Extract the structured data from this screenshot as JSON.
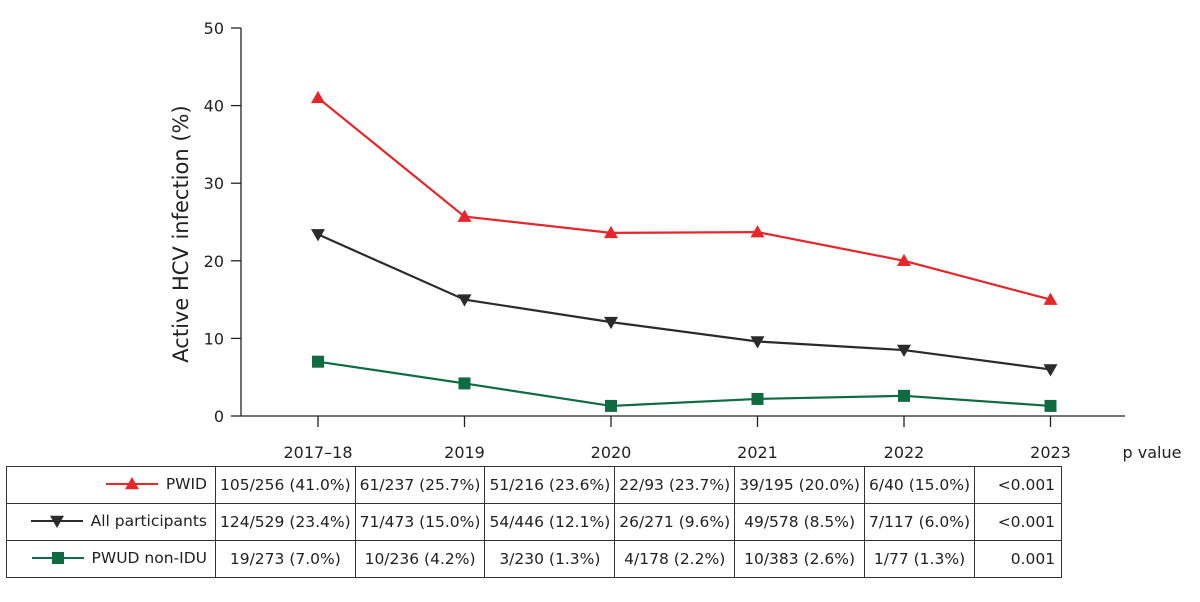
{
  "chart_data": {
    "type": "line",
    "ylabel": "Active HCV infection (%)",
    "ylim": [
      0,
      50
    ],
    "yticks": [
      "0",
      "10",
      "20",
      "30",
      "40",
      "50"
    ],
    "categories": [
      "2017–18",
      "2019",
      "2020",
      "2021",
      "2022",
      "2023"
    ],
    "grid": false,
    "series": [
      {
        "name": "PWID",
        "color": "#e8262a",
        "marker": "triangle-up",
        "values": [
          41.0,
          25.7,
          23.6,
          23.7,
          20.0,
          15.0
        ]
      },
      {
        "name": "All participants",
        "color": "#2b2b2b",
        "marker": "triangle-down",
        "values": [
          23.4,
          15.0,
          12.1,
          9.6,
          8.5,
          6.0
        ]
      },
      {
        "name": "PWUD non-IDU",
        "color": "#0f6b42",
        "marker": "square",
        "values": [
          7.0,
          4.2,
          1.3,
          2.2,
          2.6,
          1.3
        ]
      }
    ]
  },
  "table": {
    "pvalue_header": "p value",
    "rows": [
      {
        "label": "PWID",
        "cells": [
          "105/256 (41.0%)",
          "61/237 (25.7%)",
          "51/216 (23.6%)",
          "22/93 (23.7%)",
          "39/195 (20.0%)",
          "6/40 (15.0%)"
        ],
        "p": "<0.001"
      },
      {
        "label": "All participants",
        "cells": [
          "124/529 (23.4%)",
          "71/473 (15.0%)",
          "54/446 (12.1%)",
          "26/271 (9.6%)",
          "49/578 (8.5%)",
          "7/117 (6.0%)"
        ],
        "p": "<0.001"
      },
      {
        "label": "PWUD non-IDU",
        "cells": [
          "19/273 (7.0%)",
          "10/236 (4.2%)",
          "3/230 (1.3%)",
          "4/178 (2.2%)",
          "10/383 (2.6%)",
          "1/77 (1.3%)"
        ],
        "p": "0.001"
      }
    ]
  }
}
